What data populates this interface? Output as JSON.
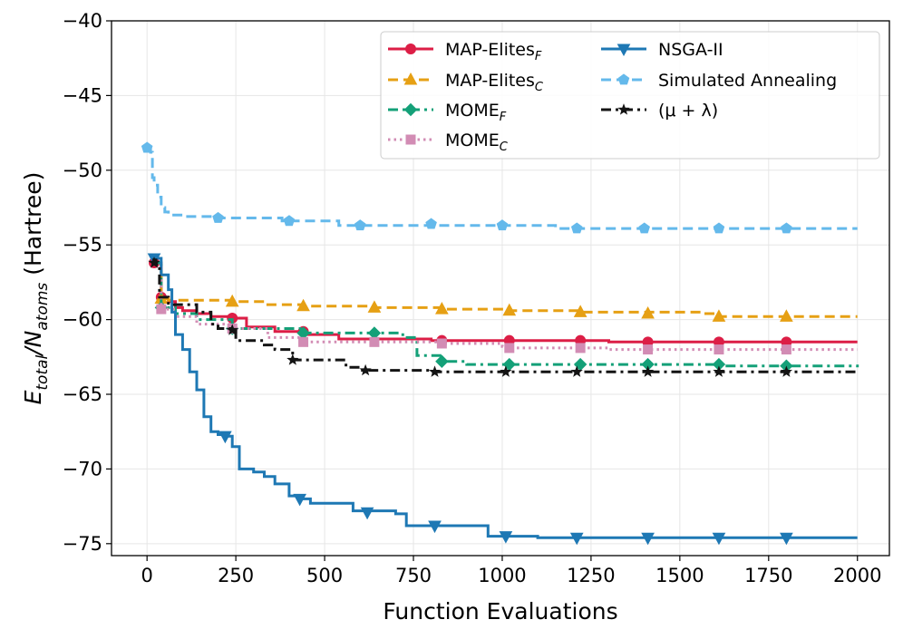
{
  "chart_data": {
    "type": "line",
    "title": "",
    "xlabel": "Function Evaluations",
    "ylabel": "E_total/N_atoms (Hartree)",
    "ylabel_parts": {
      "main": "E",
      "sub1": "total",
      "slash": "/N",
      "sub2": "atoms",
      "unit": " (Hartree)"
    },
    "xlim": [
      -100,
      2090
    ],
    "ylim": [
      -75.8,
      -40
    ],
    "xticks": [
      0,
      250,
      500,
      750,
      1000,
      1250,
      1500,
      1750,
      2000
    ],
    "xtick_labels": [
      "0",
      "250",
      "500",
      "750",
      "1000",
      "1250",
      "1500",
      "1750",
      "2000"
    ],
    "yticks": [
      -75,
      -70,
      -65,
      -60,
      -55,
      -50,
      -45,
      -40
    ],
    "ytick_labels": [
      "−75",
      "−70",
      "−65",
      "−60",
      "−55",
      "−50",
      "−45",
      "−40"
    ],
    "grid": true,
    "legend_position": "top-right",
    "series": [
      {
        "name": "MAP-Elites_F",
        "label_main": "MAP-Elites",
        "label_sub": "F",
        "color": "#DC1E46",
        "dash": "solid",
        "marker": "circle",
        "points": [
          [
            20,
            -56.2
          ],
          [
            40,
            -58.5
          ],
          [
            60,
            -58.8
          ],
          [
            80,
            -59.2
          ],
          [
            100,
            -59.4
          ],
          [
            140,
            -59.6
          ],
          [
            180,
            -59.8
          ],
          [
            240,
            -59.9
          ],
          [
            280,
            -60.5
          ],
          [
            360,
            -60.5
          ],
          [
            360,
            -60.8
          ],
          [
            440,
            -60.8
          ],
          [
            440,
            -61.0
          ],
          [
            540,
            -61.0
          ],
          [
            540,
            -61.3
          ],
          [
            800,
            -61.4
          ],
          [
            1000,
            -61.4
          ],
          [
            1220,
            -61.4
          ],
          [
            1300,
            -61.5
          ],
          [
            2000,
            -61.5
          ]
        ],
        "markers": [
          [
            20,
            -56.2
          ],
          [
            40,
            -58.5
          ],
          [
            240,
            -59.9
          ],
          [
            440,
            -60.8
          ],
          [
            830,
            -61.4
          ],
          [
            1020,
            -61.4
          ],
          [
            1220,
            -61.4
          ],
          [
            1410,
            -61.5
          ],
          [
            1610,
            -61.5
          ],
          [
            1800,
            -61.5
          ]
        ]
      },
      {
        "name": "MAP-Elites_C",
        "label_main": "MAP-Elites",
        "label_sub": "C",
        "color": "#E6A014",
        "dash": "dash",
        "marker": "triangle-up",
        "points": [
          [
            20,
            -56.2
          ],
          [
            40,
            -58.6
          ],
          [
            60,
            -58.7
          ],
          [
            240,
            -58.8
          ],
          [
            340,
            -59.0
          ],
          [
            440,
            -59.1
          ],
          [
            640,
            -59.2
          ],
          [
            830,
            -59.3
          ],
          [
            1020,
            -59.4
          ],
          [
            1150,
            -59.4
          ],
          [
            1220,
            -59.5
          ],
          [
            1560,
            -59.6
          ],
          [
            1600,
            -59.8
          ],
          [
            2000,
            -59.8
          ]
        ],
        "markers": [
          [
            40,
            -58.6
          ],
          [
            240,
            -58.8
          ],
          [
            440,
            -59.1
          ],
          [
            640,
            -59.2
          ],
          [
            830,
            -59.3
          ],
          [
            1020,
            -59.4
          ],
          [
            1220,
            -59.5
          ],
          [
            1410,
            -59.6
          ],
          [
            1610,
            -59.8
          ],
          [
            1800,
            -59.8
          ]
        ]
      },
      {
        "name": "MOME_F",
        "label_main": "MOME",
        "label_sub": "F",
        "color": "#14A078",
        "dash": "dashdot",
        "marker": "diamond",
        "points": [
          [
            20,
            -56.2
          ],
          [
            40,
            -59.2
          ],
          [
            80,
            -59.6
          ],
          [
            140,
            -60.0
          ],
          [
            240,
            -60.6
          ],
          [
            440,
            -60.9
          ],
          [
            640,
            -60.9
          ],
          [
            720,
            -61.2
          ],
          [
            760,
            -62.4
          ],
          [
            830,
            -62.8
          ],
          [
            900,
            -63.0
          ],
          [
            1000,
            -63.0
          ],
          [
            1600,
            -63.1
          ],
          [
            2000,
            -63.2
          ]
        ],
        "markers": [
          [
            40,
            -59.2
          ],
          [
            240,
            -60.6
          ],
          [
            440,
            -60.9
          ],
          [
            640,
            -60.9
          ],
          [
            830,
            -62.8
          ],
          [
            1020,
            -63.0
          ],
          [
            1220,
            -63.0
          ],
          [
            1410,
            -63.0
          ],
          [
            1610,
            -63.0
          ],
          [
            1800,
            -63.1
          ]
        ]
      },
      {
        "name": "MOME_C",
        "label_main": "MOME",
        "label_sub": "C",
        "color": "#D28CB4",
        "dash": "dot",
        "marker": "square",
        "points": [
          [
            20,
            -56.2
          ],
          [
            40,
            -59.3
          ],
          [
            80,
            -59.8
          ],
          [
            140,
            -60.3
          ],
          [
            240,
            -60.6
          ],
          [
            340,
            -61.2
          ],
          [
            440,
            -61.5
          ],
          [
            640,
            -61.5
          ],
          [
            830,
            -61.6
          ],
          [
            1000,
            -61.8
          ],
          [
            1020,
            -61.9
          ],
          [
            1220,
            -61.9
          ],
          [
            1300,
            -62.0
          ],
          [
            2000,
            -62.0
          ]
        ],
        "markers": [
          [
            40,
            -59.3
          ],
          [
            240,
            -60.6
          ],
          [
            440,
            -61.5
          ],
          [
            640,
            -61.5
          ],
          [
            830,
            -61.6
          ],
          [
            1020,
            -61.9
          ],
          [
            1220,
            -61.9
          ],
          [
            1410,
            -62.0
          ],
          [
            1610,
            -62.0
          ],
          [
            1800,
            -62.0
          ]
        ]
      },
      {
        "name": "NSGA-II",
        "label_main": "NSGA-II",
        "label_sub": "",
        "color": "#1E78B4",
        "dash": "solid",
        "marker": "triangle-down",
        "points": [
          [
            20,
            -55.9
          ],
          [
            40,
            -57.0
          ],
          [
            60,
            -58.0
          ],
          [
            70,
            -59.5
          ],
          [
            80,
            -61.0
          ],
          [
            100,
            -62.0
          ],
          [
            120,
            -63.5
          ],
          [
            140,
            -64.7
          ],
          [
            160,
            -66.5
          ],
          [
            180,
            -67.5
          ],
          [
            200,
            -67.7
          ],
          [
            220,
            -67.8
          ],
          [
            240,
            -68.5
          ],
          [
            260,
            -70.0
          ],
          [
            300,
            -70.2
          ],
          [
            330,
            -70.5
          ],
          [
            360,
            -71.0
          ],
          [
            400,
            -71.8
          ],
          [
            430,
            -72.0
          ],
          [
            460,
            -72.3
          ],
          [
            560,
            -72.3
          ],
          [
            580,
            -72.8
          ],
          [
            700,
            -73.0
          ],
          [
            730,
            -73.8
          ],
          [
            960,
            -73.8
          ],
          [
            960,
            -74.5
          ],
          [
            1100,
            -74.6
          ],
          [
            2000,
            -74.6
          ]
        ],
        "markers": [
          [
            20,
            -55.9
          ],
          [
            220,
            -67.8
          ],
          [
            430,
            -72.0
          ],
          [
            620,
            -72.9
          ],
          [
            810,
            -73.8
          ],
          [
            1010,
            -74.5
          ],
          [
            1210,
            -74.6
          ],
          [
            1410,
            -74.6
          ],
          [
            1610,
            -74.6
          ],
          [
            1800,
            -74.6
          ]
        ]
      },
      {
        "name": "Simulated Annealing",
        "label_main": "Simulated Annealing",
        "label_sub": "",
        "color": "#64B9EB",
        "dash": "dash",
        "marker": "pentagon",
        "points": [
          [
            0,
            -48.5
          ],
          [
            10,
            -48.8
          ],
          [
            15,
            -50.5
          ],
          [
            20,
            -51.0
          ],
          [
            30,
            -51.8
          ],
          [
            40,
            -52.5
          ],
          [
            50,
            -52.8
          ],
          [
            60,
            -53.0
          ],
          [
            100,
            -53.1
          ],
          [
            200,
            -53.2
          ],
          [
            380,
            -53.4
          ],
          [
            540,
            -53.4
          ],
          [
            540,
            -53.7
          ],
          [
            1100,
            -53.7
          ],
          [
            1150,
            -53.9
          ],
          [
            2000,
            -53.9
          ]
        ],
        "markers": [
          [
            0,
            -48.5
          ],
          [
            200,
            -53.2
          ],
          [
            400,
            -53.4
          ],
          [
            600,
            -53.7
          ],
          [
            800,
            -53.6
          ],
          [
            1000,
            -53.7
          ],
          [
            1210,
            -53.9
          ],
          [
            1400,
            -53.9
          ],
          [
            1610,
            -53.9
          ],
          [
            1800,
            -53.9
          ]
        ]
      },
      {
        "name": "(μ + λ)",
        "label_main": "(μ + λ)",
        "label_sub": "",
        "color": "#141414",
        "dash": "dashdot",
        "marker": "star",
        "points": [
          [
            15,
            -56.0
          ],
          [
            25,
            -56.3
          ],
          [
            35,
            -58.5
          ],
          [
            60,
            -59.0
          ],
          [
            140,
            -59.5
          ],
          [
            180,
            -60.3
          ],
          [
            200,
            -60.6
          ],
          [
            240,
            -60.7
          ],
          [
            250,
            -61.4
          ],
          [
            330,
            -61.7
          ],
          [
            360,
            -62.0
          ],
          [
            410,
            -62.7
          ],
          [
            540,
            -62.7
          ],
          [
            560,
            -63.2
          ],
          [
            600,
            -63.4
          ],
          [
            800,
            -63.5
          ],
          [
            2000,
            -63.5
          ]
        ],
        "markers": [
          [
            20,
            -56.2
          ],
          [
            240,
            -60.7
          ],
          [
            410,
            -62.7
          ],
          [
            615,
            -63.4
          ],
          [
            810,
            -63.5
          ],
          [
            1010,
            -63.5
          ],
          [
            1210,
            -63.5
          ],
          [
            1410,
            -63.5
          ],
          [
            1610,
            -63.5
          ],
          [
            1800,
            -63.5
          ]
        ]
      }
    ]
  }
}
